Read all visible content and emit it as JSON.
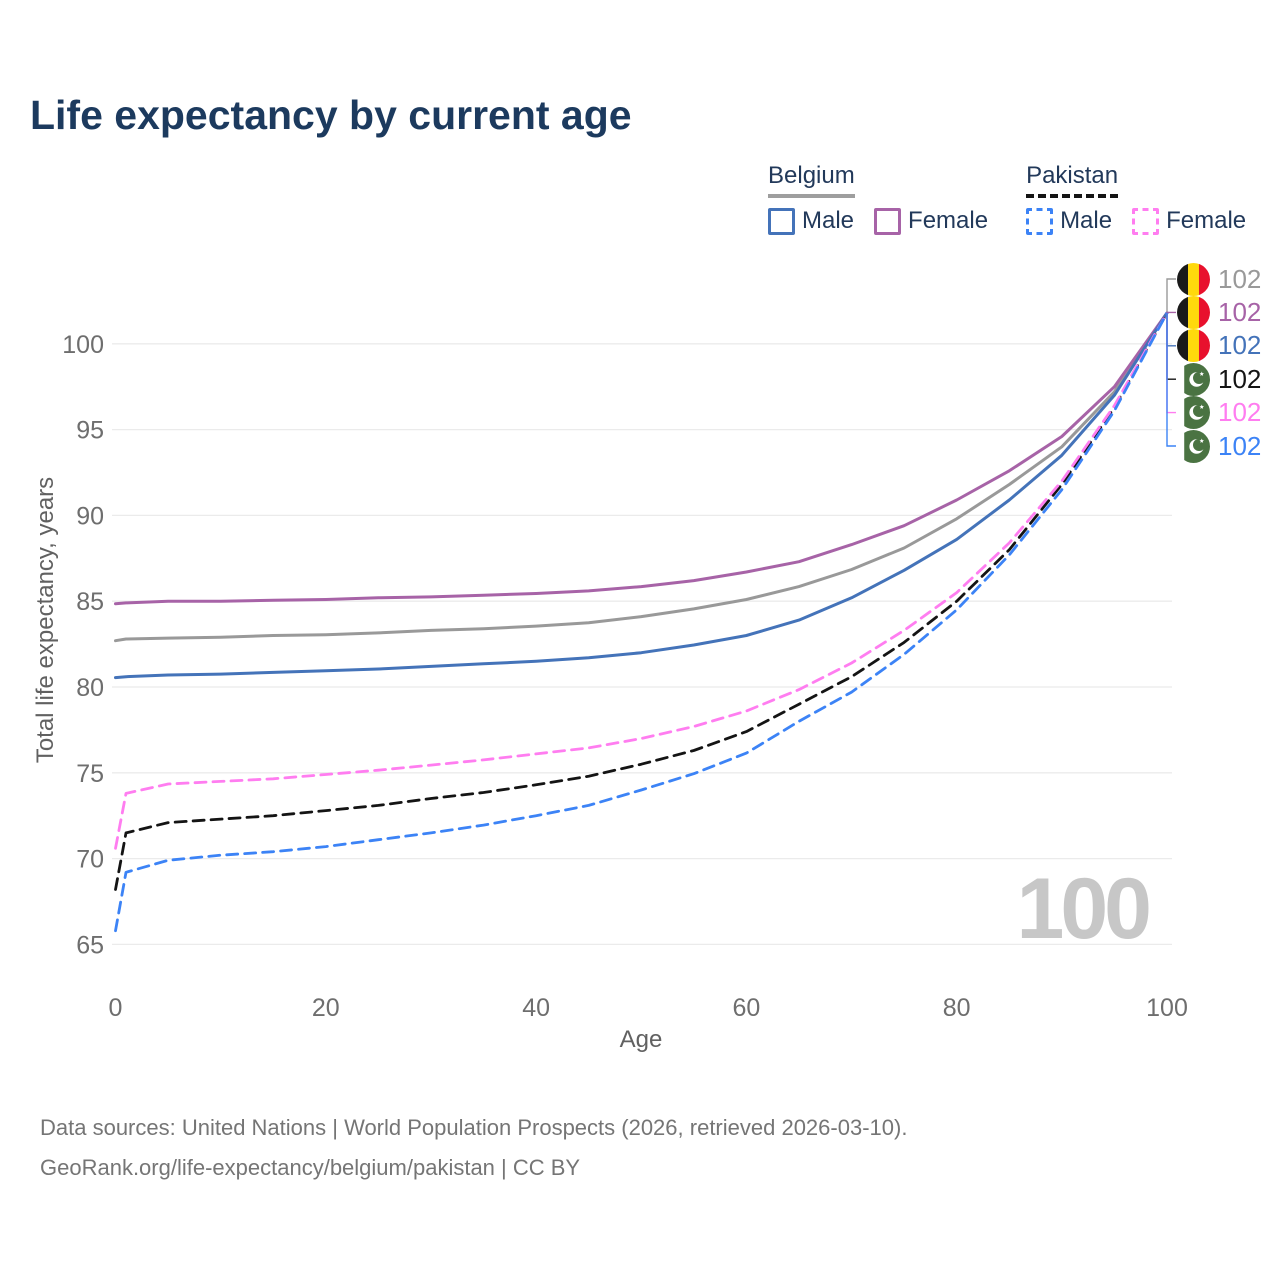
{
  "title": "Life expectancy by current age",
  "watermark": "100",
  "legend": {
    "groups": [
      {
        "label": "Belgium",
        "line_style": "solid",
        "underline_color": "#9e9e9e",
        "items": [
          {
            "label": "Male",
            "color": "#4473b9",
            "dashed": false
          },
          {
            "label": "Female",
            "color": "#a763a7",
            "dashed": false
          }
        ]
      },
      {
        "label": "Pakistan",
        "line_style": "dashed",
        "underline_color": "#141414",
        "items": [
          {
            "label": "Male",
            "color": "#3c83f6",
            "dashed": true
          },
          {
            "label": "Female",
            "color": "#ff7df0",
            "dashed": true
          }
        ]
      }
    ]
  },
  "chart_data": {
    "type": "line",
    "title": "Life expectancy by current age",
    "xlabel": "Age",
    "ylabel": "Total life expectancy, years",
    "x_ticks": [
      0,
      20,
      40,
      60,
      80,
      100
    ],
    "y_ticks": [
      65,
      70,
      75,
      80,
      85,
      90,
      95,
      100
    ],
    "xlim": [
      0,
      100
    ],
    "ylim": [
      64,
      102.5
    ],
    "grid": "horizontal",
    "legend_position": "top-right",
    "x": [
      0,
      1,
      5,
      10,
      15,
      20,
      25,
      30,
      35,
      40,
      45,
      50,
      55,
      60,
      65,
      70,
      75,
      80,
      85,
      90,
      95,
      100
    ],
    "series": [
      {
        "name": "Belgium Total",
        "country": "Belgium",
        "sex": "Total",
        "color": "#999999",
        "dashed": false,
        "values": [
          82.7,
          82.8,
          82.85,
          82.9,
          83.0,
          83.05,
          83.15,
          83.3,
          83.4,
          83.55,
          83.75,
          84.1,
          84.55,
          85.1,
          85.85,
          86.85,
          88.1,
          89.8,
          91.8,
          94.0,
          97.2,
          101.8
        ]
      },
      {
        "name": "Belgium Female",
        "country": "Belgium",
        "sex": "Female",
        "color": "#a763a7",
        "dashed": false,
        "values": [
          84.85,
          84.9,
          85.0,
          85.0,
          85.05,
          85.1,
          85.2,
          85.25,
          85.35,
          85.45,
          85.6,
          85.85,
          86.2,
          86.7,
          87.3,
          88.3,
          89.4,
          90.9,
          92.6,
          94.6,
          97.5,
          101.8
        ]
      },
      {
        "name": "Belgium Male",
        "country": "Belgium",
        "sex": "Male",
        "color": "#4473b9",
        "dashed": false,
        "values": [
          80.55,
          80.6,
          80.7,
          80.75,
          80.85,
          80.95,
          81.05,
          81.2,
          81.35,
          81.5,
          81.7,
          82.0,
          82.45,
          83.0,
          83.9,
          85.2,
          86.8,
          88.6,
          90.9,
          93.5,
          97.0,
          101.8
        ]
      },
      {
        "name": "Pakistan Total",
        "country": "Pakistan",
        "sex": "Total",
        "color": "#141414",
        "dashed": true,
        "values": [
          68.2,
          71.5,
          72.1,
          72.3,
          72.5,
          72.8,
          73.1,
          73.5,
          73.85,
          74.3,
          74.8,
          75.5,
          76.3,
          77.4,
          79.0,
          80.6,
          82.6,
          85.0,
          88.0,
          91.8,
          96.3,
          101.8
        ]
      },
      {
        "name": "Pakistan Female",
        "country": "Pakistan",
        "sex": "Female",
        "color": "#ff7df0",
        "dashed": true,
        "values": [
          70.6,
          73.8,
          74.35,
          74.5,
          74.65,
          74.9,
          75.15,
          75.45,
          75.75,
          76.1,
          76.45,
          77.0,
          77.7,
          78.6,
          79.85,
          81.4,
          83.3,
          85.5,
          88.4,
          92.0,
          96.4,
          101.8
        ]
      },
      {
        "name": "Pakistan Male",
        "country": "Pakistan",
        "sex": "Male",
        "color": "#3c83f6",
        "dashed": true,
        "values": [
          65.8,
          69.2,
          69.9,
          70.2,
          70.4,
          70.7,
          71.1,
          71.5,
          71.95,
          72.5,
          73.1,
          74.0,
          74.95,
          76.15,
          78.0,
          79.7,
          81.9,
          84.5,
          87.7,
          91.5,
          96.1,
          101.8
        ]
      }
    ],
    "end_labels": [
      {
        "value": "102",
        "flag": "belgium",
        "color": "#999999",
        "series": "Belgium Total"
      },
      {
        "value": "102",
        "flag": "belgium",
        "color": "#a763a7",
        "series": "Belgium Female"
      },
      {
        "value": "102",
        "flag": "belgium",
        "color": "#4473b9",
        "series": "Belgium Male"
      },
      {
        "value": "102",
        "flag": "pakistan",
        "color": "#141414",
        "series": "Pakistan Total"
      },
      {
        "value": "102",
        "flag": "pakistan",
        "color": "#ff7df0",
        "series": "Pakistan Female"
      },
      {
        "value": "102",
        "flag": "pakistan",
        "color": "#3c83f6",
        "series": "Pakistan Male"
      }
    ],
    "flag_colors": {
      "belgium": {
        "black": "#1a1a1a",
        "yellow": "#FFD90C",
        "red": "#E8112D"
      },
      "pakistan": {
        "green": "#4a7342",
        "white": "#ffffff"
      }
    }
  },
  "footer": {
    "line1": "Data sources: United Nations | World Population Prospects (2026, retrieved 2026-03-10).",
    "line2": "GeoRank.org/life-expectancy/belgium/pakistan | CC BY"
  }
}
